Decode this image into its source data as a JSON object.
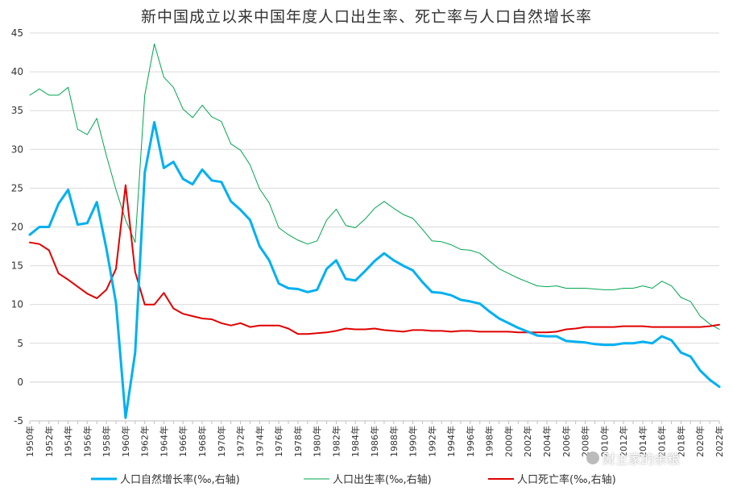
{
  "chart_data": {
    "type": "line",
    "title": "新中国成立以来中国年度人口出生率、死亡率与人口自然增长率",
    "xlabel": "",
    "ylabel": "",
    "ylim": [
      -5,
      45
    ],
    "ytick_values": [
      -5,
      0,
      5,
      10,
      15,
      20,
      25,
      30,
      35,
      40,
      45
    ],
    "ytick_labels": [
      "-5",
      "0",
      "5",
      "10",
      "15",
      "20",
      "25",
      "30",
      "35",
      "40",
      "45"
    ],
    "x": [
      1950,
      1951,
      1952,
      1953,
      1954,
      1955,
      1956,
      1957,
      1958,
      1959,
      1960,
      1961,
      1962,
      1963,
      1964,
      1965,
      1966,
      1967,
      1968,
      1969,
      1970,
      1971,
      1972,
      1973,
      1974,
      1975,
      1976,
      1977,
      1978,
      1979,
      1980,
      1981,
      1982,
      1983,
      1984,
      1985,
      1986,
      1987,
      1988,
      1989,
      1990,
      1991,
      1992,
      1993,
      1994,
      1995,
      1996,
      1997,
      1998,
      1999,
      2000,
      2001,
      2002,
      2003,
      2004,
      2005,
      2006,
      2007,
      2008,
      2009,
      2010,
      2011,
      2012,
      2013,
      2014,
      2015,
      2016,
      2017,
      2018,
      2019,
      2020,
      2021,
      2022
    ],
    "xtick_labels": [
      "1950年",
      "1952年",
      "1954年",
      "1956年",
      "1958年",
      "1960年",
      "1962年",
      "1964年",
      "1966年",
      "1968年",
      "1970年",
      "1972年",
      "1974年",
      "1976年",
      "1978年",
      "1980年",
      "1982年",
      "1984年",
      "1986年",
      "1988年",
      "1990年",
      "1992年",
      "1994年",
      "1996年",
      "1998年",
      "2000年",
      "2002年",
      "2004年",
      "2006年",
      "2008年",
      "2010年",
      "2012年",
      "2014年",
      "2016年",
      "2018年",
      "2020年",
      "2022年"
    ],
    "series": [
      {
        "name": "人口自然增长率(‰,右轴)",
        "color": "#00b0f0",
        "width": 3,
        "values": [
          19.0,
          20.0,
          20.0,
          23.0,
          24.8,
          20.3,
          20.5,
          23.2,
          17.2,
          10.2,
          -4.6,
          3.8,
          27.0,
          33.5,
          27.6,
          28.4,
          26.2,
          25.5,
          27.4,
          26.0,
          25.8,
          23.3,
          22.2,
          20.9,
          17.5,
          15.7,
          12.7,
          12.1,
          12.0,
          11.6,
          11.9,
          14.6,
          15.7,
          13.3,
          13.1,
          14.3,
          15.6,
          16.6,
          15.7,
          15.0,
          14.4,
          12.9,
          11.6,
          11.5,
          11.2,
          10.6,
          10.4,
          10.1,
          9.1,
          8.2,
          7.6,
          7.0,
          6.5,
          6.0,
          5.9,
          5.9,
          5.3,
          5.2,
          5.1,
          4.9,
          4.8,
          4.8,
          5.0,
          5.0,
          5.2,
          5.0,
          5.9,
          5.4,
          3.8,
          3.3,
          1.5,
          0.3,
          -0.6
        ]
      },
      {
        "name": "人口出生率(‰,右轴)",
        "color": "#00a550",
        "width": 1,
        "values": [
          37.0,
          37.8,
          37.0,
          37.0,
          38.0,
          32.6,
          31.9,
          34.0,
          29.2,
          24.8,
          20.9,
          18.0,
          37.0,
          43.6,
          39.3,
          38.0,
          35.2,
          34.1,
          35.7,
          34.2,
          33.6,
          30.7,
          29.9,
          28.0,
          24.9,
          23.1,
          19.9,
          19.0,
          18.3,
          17.8,
          18.2,
          20.9,
          22.3,
          20.2,
          19.9,
          21.0,
          22.4,
          23.3,
          22.4,
          21.6,
          21.1,
          19.7,
          18.2,
          18.1,
          17.7,
          17.1,
          17.0,
          16.6,
          15.6,
          14.6,
          14.0,
          13.4,
          12.9,
          12.4,
          12.3,
          12.4,
          12.1,
          12.1,
          12.1,
          12.0,
          11.9,
          11.9,
          12.1,
          12.1,
          12.4,
          12.1,
          13.0,
          12.4,
          10.9,
          10.4,
          8.5,
          7.5,
          6.8
        ]
      },
      {
        "name": "人口死亡率(‰,右轴)",
        "color": "#e00000",
        "width": 2,
        "values": [
          18.0,
          17.8,
          17.0,
          14.0,
          13.2,
          12.3,
          11.4,
          10.8,
          11.9,
          14.6,
          25.4,
          14.2,
          10.0,
          10.0,
          11.5,
          9.5,
          8.8,
          8.5,
          8.2,
          8.1,
          7.6,
          7.3,
          7.6,
          7.1,
          7.3,
          7.3,
          7.3,
          6.9,
          6.2,
          6.2,
          6.3,
          6.4,
          6.6,
          6.9,
          6.8,
          6.8,
          6.9,
          6.7,
          6.6,
          6.5,
          6.7,
          6.7,
          6.6,
          6.6,
          6.5,
          6.6,
          6.6,
          6.5,
          6.5,
          6.5,
          6.5,
          6.4,
          6.4,
          6.4,
          6.4,
          6.5,
          6.8,
          6.9,
          7.1,
          7.1,
          7.1,
          7.1,
          7.2,
          7.2,
          7.2,
          7.1,
          7.1,
          7.1,
          7.1,
          7.1,
          7.1,
          7.2,
          7.4
        ]
      }
    ],
    "legend_position": "bottom"
  },
  "watermark": {
    "text": "财主家的余粮"
  }
}
